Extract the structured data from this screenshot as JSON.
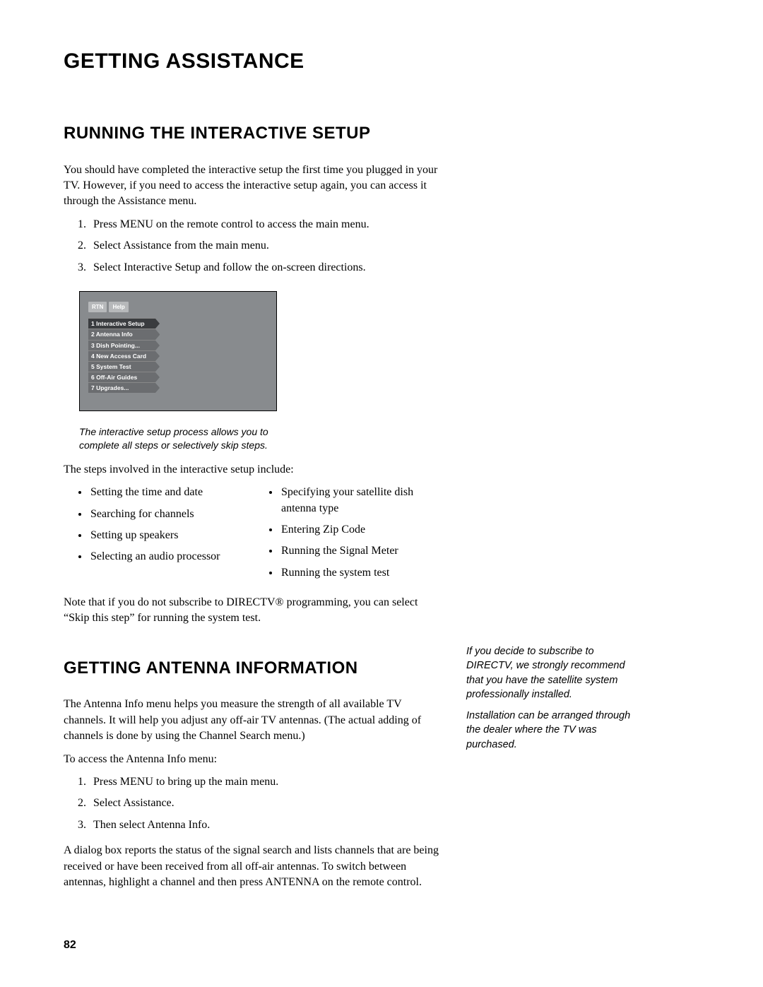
{
  "title": "GETTING ASSISTANCE",
  "section1": {
    "heading": "RUNNING THE INTERACTIVE SETUP",
    "intro": "You should have completed the interactive setup the first time you plugged in your TV. However, if you need to access the interactive setup again, you can access it through the Assistance menu.",
    "steps": [
      "Press MENU on the remote control to access the main menu.",
      "Select Assistance from the main menu.",
      "Select Interactive Setup and follow the on-screen directions."
    ],
    "screenshot": {
      "tabs": [
        "RTN",
        "Help"
      ],
      "menu": [
        {
          "label": "1 Interactive Setup",
          "active": true
        },
        {
          "label": "2 Antenna Info",
          "active": false
        },
        {
          "label": "3 Dish Pointing...",
          "active": false
        },
        {
          "label": "4 New Access Card",
          "active": false
        },
        {
          "label": "5 System Test",
          "active": false
        },
        {
          "label": "6 Off-Air Guides",
          "active": false
        },
        {
          "label": "7 Upgrades...",
          "active": false
        }
      ],
      "bg_color": "#888b8e",
      "item_color": "#6b6d70",
      "active_color": "#3a3c3f"
    },
    "caption": "The interactive setup process allows you to complete all steps or selectively skip steps.",
    "steps_intro": "The steps involved in the interactive setup include:",
    "bullets_colA": [
      "Setting the time and date",
      "Searching for channels",
      "Setting up speakers",
      "Selecting an audio processor"
    ],
    "bullets_colB": [
      "Specifying your satellite dish antenna type",
      "Entering Zip Code",
      "Running the Signal Meter",
      "Running the system test"
    ],
    "note": "Note that if you do not subscribe to DIRECTV® programming, you can select “Skip this step” for running the system test."
  },
  "section2": {
    "heading": "GETTING ANTENNA INFORMATION",
    "p1": "The Antenna Info menu helps you measure the strength of all available TV channels. It will help you adjust any off-air TV antennas. (The actual adding of channels is done by using the Channel Search menu.)",
    "p2": "To access the Antenna Info menu:",
    "steps": [
      "Press MENU to bring up the main menu.",
      "Select Assistance.",
      "Then select Antenna Info."
    ],
    "p3": "A dialog box reports the status of the signal search and lists channels that are being received or have been received from all off-air antennas. To switch between antennas, highlight a channel and then press ANTENNA on the remote control."
  },
  "sidebar": {
    "p1": "If you decide to subscribe to DIRECTV, we strongly recommend that you have the satellite system professionally installed.",
    "p2": "Installation can be arranged through the dealer where the TV was purchased."
  },
  "page_number": "82"
}
